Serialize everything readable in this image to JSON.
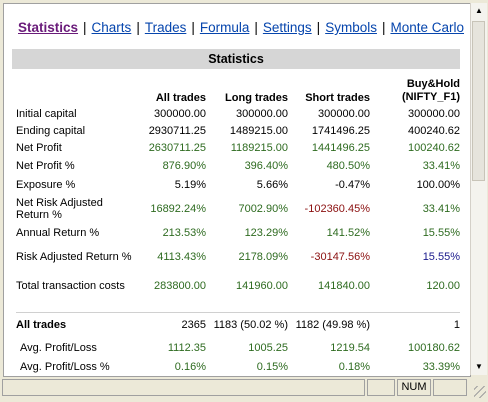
{
  "nav": {
    "items": [
      {
        "label": "Statistics"
      },
      {
        "label": "Charts"
      },
      {
        "label": "Trades"
      },
      {
        "label": "Formula"
      },
      {
        "label": "Settings"
      },
      {
        "label": "Symbols"
      },
      {
        "label": "Monte Carlo"
      }
    ],
    "separator": "|"
  },
  "section_title": "Statistics",
  "columns": [
    "All trades",
    "Long trades",
    "Short trades",
    "Buy&Hold (NIFTY_F1)"
  ],
  "rows": [
    {
      "label": "Initial capital",
      "values": [
        "300000.00",
        "300000.00",
        "300000.00",
        "300000.00"
      ],
      "color": "black"
    },
    {
      "label": "Ending capital",
      "values": [
        "2930711.25",
        "1489215.00",
        "1741496.25",
        "400240.62"
      ],
      "color": "black"
    },
    {
      "label": "Net Profit",
      "values": [
        "2630711.25",
        "1189215.00",
        "1441496.25",
        "100240.62"
      ],
      "color": "green"
    },
    {
      "label": "Net Profit %",
      "values": [
        "876.90%",
        "396.40%",
        "480.50%",
        "33.41%"
      ],
      "color": "green"
    },
    {
      "label": "Exposure %",
      "values": [
        "5.19%",
        "5.66%",
        "-0.47%",
        "100.00%"
      ],
      "color": "black"
    },
    {
      "label": "Net Risk Adjusted Return %",
      "values": [
        "16892.24%",
        "7002.90%",
        "-102360.45%",
        "33.41%"
      ],
      "color": "mixed"
    },
    {
      "label": "Annual Return %",
      "values": [
        "213.53%",
        "123.29%",
        "141.52%",
        "15.55%"
      ],
      "color": "green"
    },
    {
      "label": "Risk Adjusted Return %",
      "values": [
        "4113.43%",
        "2178.09%",
        "-30147.56%",
        "15.55%"
      ],
      "color": "mixed2"
    },
    {
      "label": "Total transaction costs",
      "values": [
        "283800.00",
        "141960.00",
        "141840.00",
        "120.00"
      ],
      "color": "green"
    }
  ],
  "trades_section": {
    "label": "All trades",
    "values": [
      "2365",
      "1183 (50.02 %)",
      "1182 (49.98 %)",
      "1"
    ]
  },
  "trade_rows": [
    {
      "label": "Avg. Profit/Loss",
      "values": [
        "1112.35",
        "1005.25",
        "1219.54",
        "100180.62"
      ]
    },
    {
      "label": "Avg. Profit/Loss %",
      "values": [
        "0.16%",
        "0.15%",
        "0.18%",
        "33.39%"
      ]
    }
  ],
  "statusbar": {
    "num": "NUM"
  },
  "colors": {
    "green": "#2e6b20",
    "red": "#8b1010",
    "blue": "#1a1a8c",
    "link": "#0645ad",
    "active": "#6a1b7a"
  }
}
